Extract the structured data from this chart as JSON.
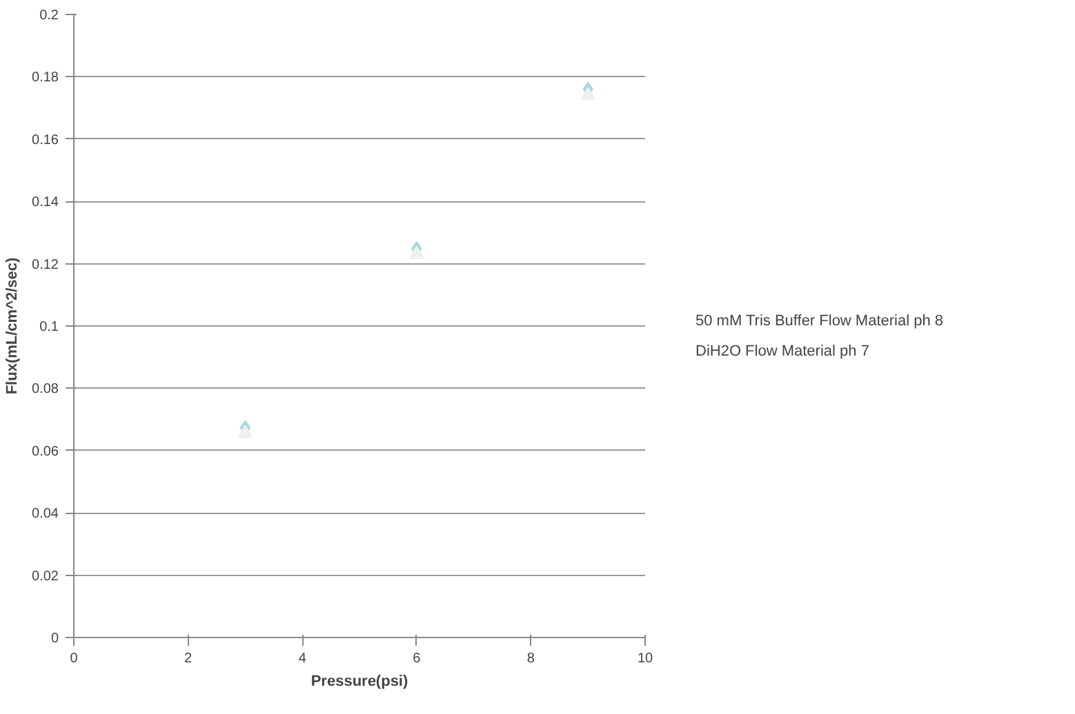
{
  "chart_data": {
    "type": "scatter",
    "xlabel": "Pressure(psi)",
    "ylabel": "Flux(mL/cm^2/sec)",
    "x": [
      3,
      6,
      9
    ],
    "series": [
      {
        "name": "50 mM Tris Buffer Flow Material ph 8",
        "color": "#a8d8dc",
        "marker": "diamond",
        "values": [
          0.0673,
          0.1248,
          0.176
        ]
      },
      {
        "name": "DiH2O Flow Material ph 7",
        "color": "#f0f0f0",
        "marker": "triangle",
        "values": [
          0.0655,
          0.123,
          0.174
        ]
      }
    ],
    "xlim": [
      0,
      10
    ],
    "xticks": [
      0,
      2,
      4,
      6,
      8,
      10
    ],
    "ylim": [
      0,
      0.2
    ],
    "yticks": [
      0,
      0.02,
      0.04,
      0.06,
      0.08,
      0.1,
      0.12,
      0.14,
      0.16,
      0.18,
      0.2
    ],
    "grid": "y",
    "legend": "right"
  }
}
